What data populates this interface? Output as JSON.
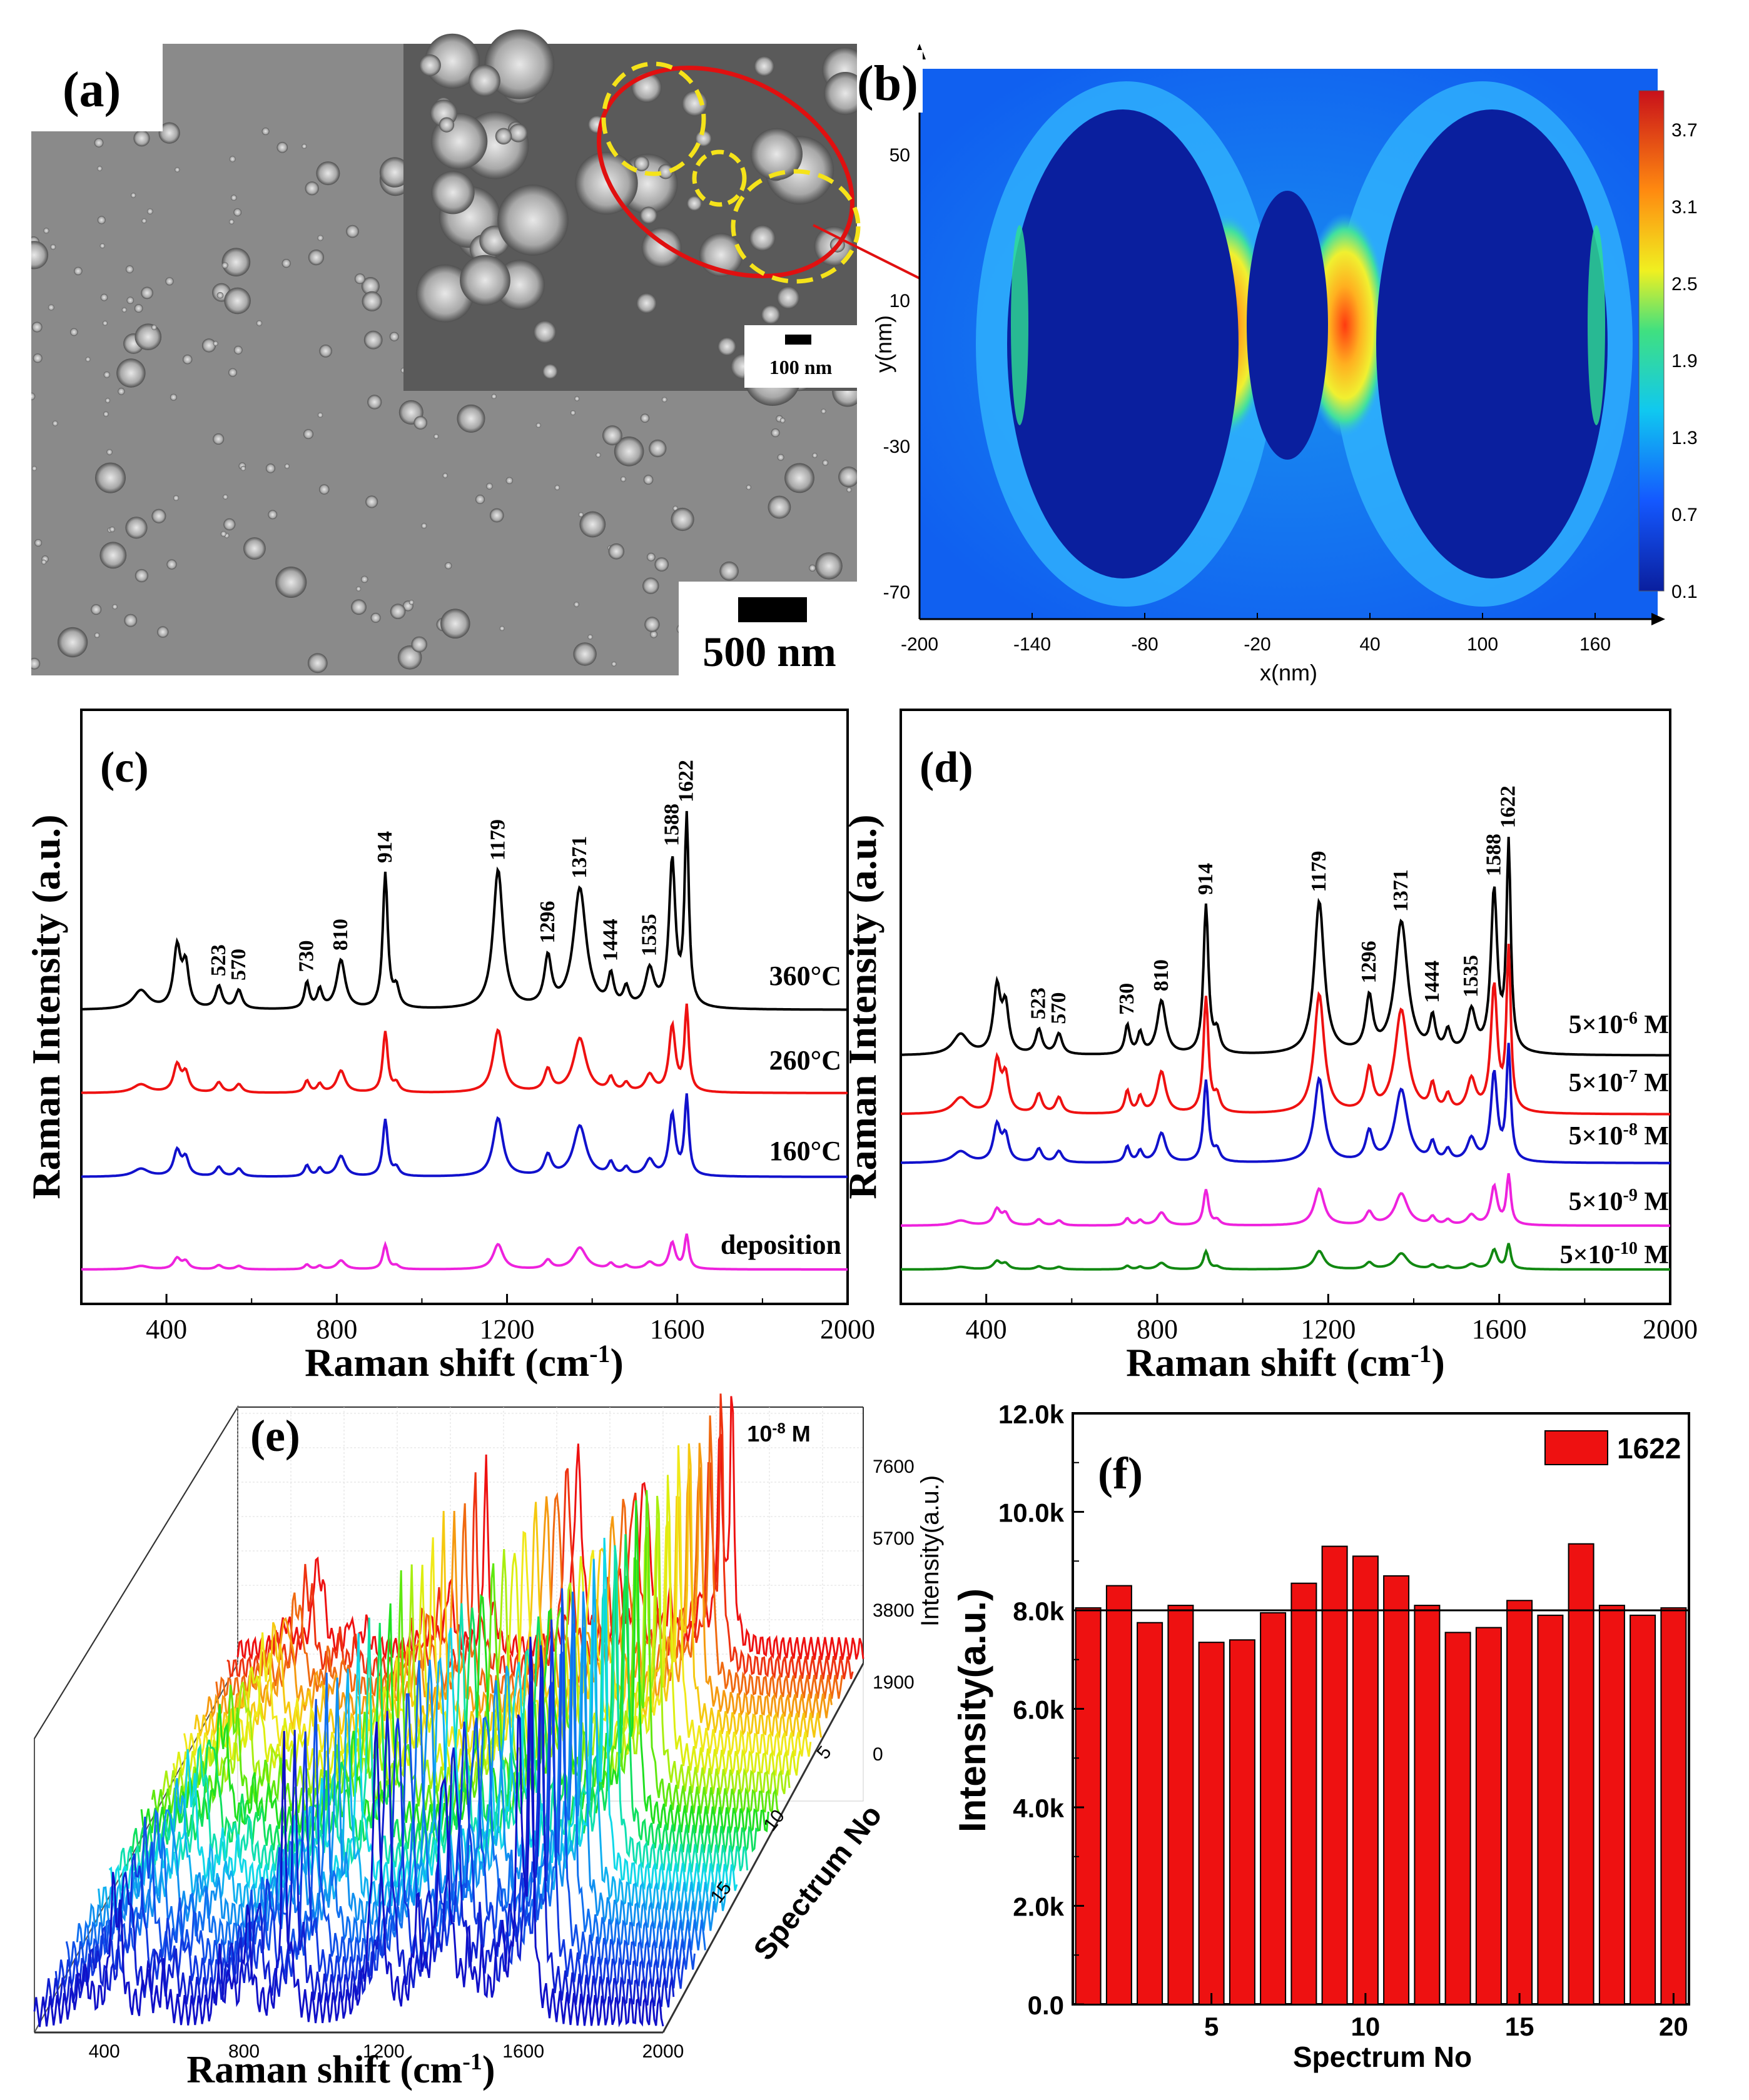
{
  "figure": {
    "panel_labels": [
      "(a)",
      "(b)",
      "(c)",
      "(d)",
      "(e)",
      "(f)"
    ]
  },
  "panel_a": {
    "inset_scale": "100 nm",
    "main_scale": "500 nm"
  },
  "panel_b": {
    "type": "heatmap",
    "xlabel": "x(nm)",
    "ylabel": "y(nm)",
    "x_ticks": [
      "-200",
      "-140",
      "-80",
      "-20",
      "40",
      "100",
      "160"
    ],
    "y_ticks": [
      "50",
      "10",
      "-30",
      "-70"
    ],
    "colorbar_ticks": [
      "3.7",
      "3.1",
      "2.5",
      "1.9",
      "1.3",
      "0.7",
      "0.1"
    ],
    "colors": {
      "low": "#0a1f9e",
      "high": "#c8101a"
    }
  },
  "panel_c": {
    "type": "line",
    "xlabel": "Raman shift (cm",
    "xlabel_sup": "-1",
    "xlabel_end": ")",
    "ylabel": "Raman Intensity (a.u.)",
    "x_ticks": [
      "400",
      "800",
      "1200",
      "1600",
      "2000"
    ],
    "xlim": [
      200,
      2000
    ],
    "peak_labels": [
      "523",
      "570",
      "730",
      "810",
      "914",
      "1179",
      "1296",
      "1371",
      "1444",
      "1535",
      "1588",
      "1622"
    ],
    "series": [
      {
        "name": "360°C",
        "color": "#000000",
        "scale": 1.0
      },
      {
        "name": "260°C",
        "color": "#ee1111",
        "scale": 0.45
      },
      {
        "name": "160°C",
        "color": "#1111cc",
        "scale": 0.42
      },
      {
        "name": "deposition",
        "color": "#ee22dd",
        "scale": 0.18
      }
    ]
  },
  "panel_d": {
    "type": "line",
    "xlabel": "Raman shift (cm",
    "xlabel_sup": "-1",
    "xlabel_end": ")",
    "ylabel": "Raman Intensity (a.u.)",
    "x_ticks": [
      "400",
      "800",
      "1200",
      "1600",
      "2000"
    ],
    "xlim": [
      200,
      2000
    ],
    "peak_labels": [
      "523",
      "570",
      "730",
      "810",
      "914",
      "1179",
      "1296",
      "1371",
      "1444",
      "1535",
      "1588",
      "1622"
    ],
    "series": [
      {
        "name_base": "5×10",
        "name_exp": "-6",
        "name_unit": " M",
        "color": "#000000",
        "scale": 1.0
      },
      {
        "name_base": "5×10",
        "name_exp": "-7",
        "name_unit": " M",
        "color": "#ee1111",
        "scale": 0.78
      },
      {
        "name_base": "5×10",
        "name_exp": "-8",
        "name_unit": " M",
        "color": "#1111cc",
        "scale": 0.55
      },
      {
        "name_base": "5×10",
        "name_exp": "-9",
        "name_unit": " M",
        "color": "#ee22dd",
        "scale": 0.24
      },
      {
        "name_base": "5×10",
        "name_exp": "-10",
        "name_unit": " M",
        "color": "#118811",
        "scale": 0.12
      }
    ]
  },
  "panel_e": {
    "type": "waterfall",
    "concentration_base": "10",
    "concentration_exp": "-8",
    "concentration_unit": " M",
    "xlabel": "Raman shift (cm",
    "xlabel_sup": "-1",
    "xlabel_end": ")",
    "zlabel": "Intensity(a.u.)",
    "ylabel": "Spectrum No",
    "x_ticks": [
      "400",
      "800",
      "1200",
      "1600",
      "2000"
    ],
    "z_ticks": [
      "7600",
      "5700",
      "3800",
      "1900",
      "0"
    ],
    "y_ticks": [
      "5",
      "10",
      "15"
    ],
    "n_spectra": 20
  },
  "chart_data": {
    "type": "bar",
    "title": "",
    "xlabel": "Spectrum No",
    "ylabel": "Intensity(a.u.)",
    "legend": "1622",
    "categories": [
      1,
      2,
      3,
      4,
      5,
      6,
      7,
      8,
      9,
      10,
      11,
      12,
      13,
      14,
      15,
      16,
      17,
      18,
      19,
      20
    ],
    "values": [
      8050,
      8500,
      7750,
      8100,
      7350,
      7400,
      7950,
      8550,
      9300,
      9100,
      8700,
      8100,
      7550,
      7650,
      8200,
      7900,
      9350,
      8100,
      7900,
      8050
    ],
    "mean_line": 8000,
    "ylim": [
      0,
      12000
    ],
    "y_ticks": [
      "0.0",
      "2.0k",
      "4.0k",
      "6.0k",
      "8.0k",
      "10.0k",
      "12.0k"
    ],
    "x_ticks": [
      "5",
      "10",
      "15",
      "20"
    ],
    "bar_color": "#ee1111"
  }
}
